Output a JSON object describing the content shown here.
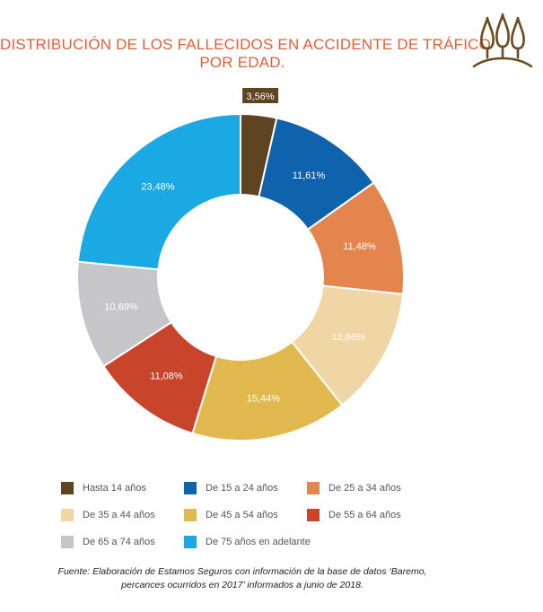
{
  "title_lines": [
    "DISTRIBUCIÓN DE LOS FALLECIDOS EN ACCIDENTE DE TRÁFICO",
    "POR EDAD."
  ],
  "logo": {
    "icon": "three-trees-icon",
    "color": "#6b4a1f"
  },
  "chart_data": {
    "type": "pie",
    "variant": "donut",
    "start": "top, clockwise",
    "slices": [
      {
        "label": "Hasta 14 años",
        "value": 3.56,
        "value_label": "3,56%",
        "color": "#5e4421"
      },
      {
        "label": "De 15 a 24 años",
        "value": 11.61,
        "value_label": "11,61%",
        "color": "#0f63ad"
      },
      {
        "label": "De 25 a 34 años",
        "value": 11.48,
        "value_label": "11,48%",
        "color": "#e3854d"
      },
      {
        "label": "De 35 a 44 años",
        "value": 12.66,
        "value_label": "12,66%",
        "color": "#f0d6a5"
      },
      {
        "label": "De 45 a 54 años",
        "value": 15.44,
        "value_label": "15,44%",
        "color": "#e2b94e"
      },
      {
        "label": "De 55 a 64 años",
        "value": 11.08,
        "value_label": "11,08%",
        "color": "#c8442b"
      },
      {
        "label": "De 65 a 74 años",
        "value": 10.69,
        "value_label": "10,69%",
        "color": "#c6c6c9"
      },
      {
        "label": "De 75 años en adelante",
        "value": 23.48,
        "value_label": "23,48%",
        "color": "#1aa9e2"
      }
    ],
    "legend_position": "bottom"
  },
  "source_lines": [
    "Fuente: Elaboración de Estamos Seguros con información de la base de datos ‘Baremo,",
    "percances ocurridos en 2017’ informados a junio de 2018."
  ]
}
